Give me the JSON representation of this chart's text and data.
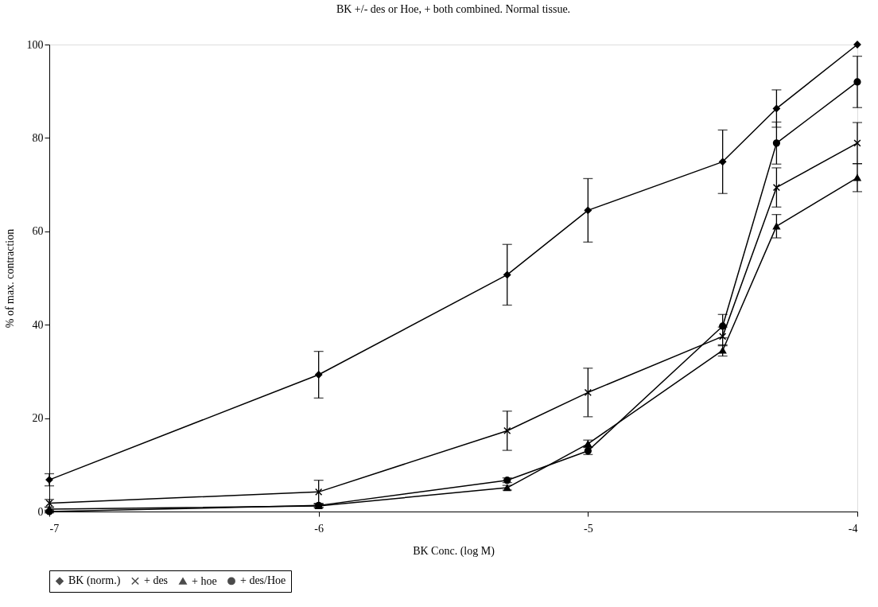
{
  "chart_data": {
    "type": "line",
    "title": "BK +/- des or Hoe, + both combined. Normal tissue.",
    "xlabel": "BK Conc. (log M)",
    "ylabel": "% of max. contraction",
    "x": [
      -7,
      -6,
      -5.3,
      -5,
      -4.5,
      -4.3,
      -4
    ],
    "series": [
      {
        "name": "BK (norm.)",
        "color": "#000000",
        "marker": "diamond",
        "values": [
          6.8,
          29.3,
          50.7,
          64.5,
          74.9,
          86.3,
          100
        ],
        "errors": [
          1.3,
          5,
          6.5,
          6.8,
          6.8,
          4,
          null
        ]
      },
      {
        "name": "+ des",
        "color": "#000000",
        "marker": "cross",
        "values": [
          1.8,
          4.2,
          17.3,
          25.5,
          37.5,
          69.4,
          78.9
        ],
        "errors": [
          0.8,
          2.5,
          4.2,
          5.2,
          2,
          4.2,
          4.4
        ]
      },
      {
        "name": "+ hoe",
        "color": "#000000",
        "marker": "triangle",
        "values": [
          0.5,
          1.2,
          5.1,
          14.5,
          34.5,
          61.1,
          71.5
        ],
        "errors": [
          0.4,
          0.4,
          0.5,
          0.8,
          1.2,
          2.5,
          3
        ]
      },
      {
        "name": "+ des/Hoe",
        "color": "#000000",
        "marker": "circle",
        "values": [
          0,
          1.3,
          6.7,
          13,
          39.7,
          78.9,
          92
        ],
        "errors": [
          0.3,
          0.4,
          0.5,
          0.8,
          2.5,
          4.5,
          5.5
        ]
      }
    ],
    "xlim": [
      -7,
      -4
    ],
    "xticks": [
      -7,
      -6,
      -5,
      -4
    ],
    "ylim": [
      0,
      100
    ],
    "yticks": [
      0,
      20,
      40,
      60,
      80,
      100
    ],
    "grid": false,
    "legend": "bottom",
    "line_style": "solid"
  }
}
